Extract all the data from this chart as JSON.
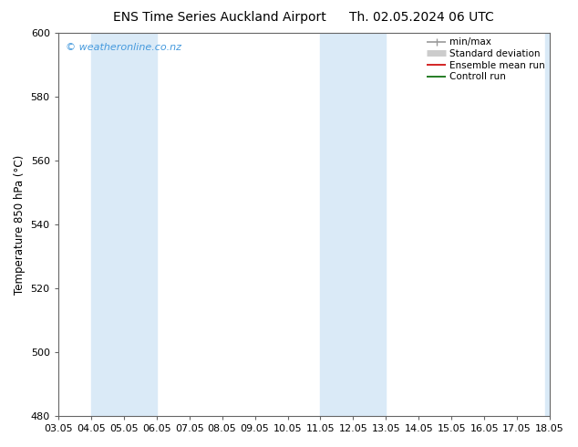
{
  "title_left": "ENS Time Series Auckland Airport",
  "title_right": "Th. 02.05.2024 06 UTC",
  "ylabel": "Temperature 850 hPa (°C)",
  "ylim": [
    480,
    600
  ],
  "yticks": [
    480,
    500,
    520,
    540,
    560,
    580,
    600
  ],
  "xlim": [
    0,
    15
  ],
  "xtick_labels": [
    "03.05",
    "04.05",
    "05.05",
    "06.05",
    "07.05",
    "08.05",
    "09.05",
    "10.05",
    "11.05",
    "12.05",
    "13.05",
    "14.05",
    "15.05",
    "16.05",
    "17.05",
    "18.05"
  ],
  "xtick_positions": [
    0,
    1,
    2,
    3,
    4,
    5,
    6,
    7,
    8,
    9,
    10,
    11,
    12,
    13,
    14,
    15
  ],
  "shaded_bands": [
    {
      "xmin": 1,
      "xmax": 3,
      "color": "#daeaf7"
    },
    {
      "xmin": 8,
      "xmax": 10,
      "color": "#daeaf7"
    }
  ],
  "right_band": {
    "xmin": 14.85,
    "xmax": 15,
    "color": "#daeaf7"
  },
  "watermark_text": "© weatheronline.co.nz",
  "watermark_color": "#4499dd",
  "background_color": "#ffffff",
  "legend_items": [
    {
      "label": "min/max",
      "color": "#999999",
      "lw": 1.2,
      "type": "line"
    },
    {
      "label": "Standard deviation",
      "color": "#cccccc",
      "lw": 5,
      "type": "bar"
    },
    {
      "label": "Ensemble mean run",
      "color": "#cc0000",
      "lw": 1.2,
      "type": "line"
    },
    {
      "label": "Controll run",
      "color": "#006600",
      "lw": 1.2,
      "type": "line"
    }
  ],
  "spine_color": "#666666",
  "title_fontsize": 10,
  "axis_label_fontsize": 8.5,
  "tick_fontsize": 8,
  "legend_fontsize": 7.5,
  "watermark_fontsize": 8
}
